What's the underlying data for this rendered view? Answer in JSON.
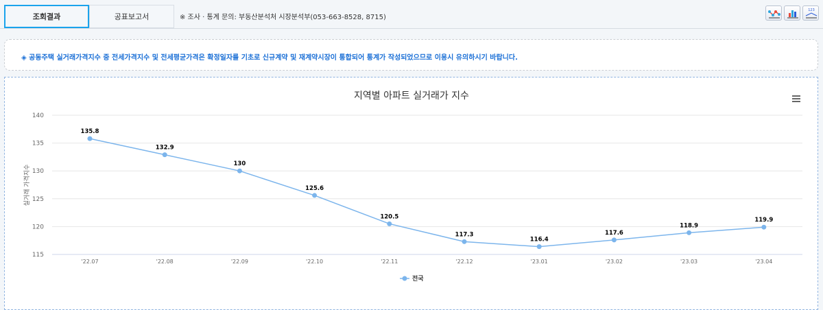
{
  "tabs": [
    {
      "label": "조회결과"
    },
    {
      "label": "공표보고서"
    }
  ],
  "contact": "※ 조사 · 통계 문의: 부동산분석처 시장분석부(053-663-8528, 8715)",
  "toolbar_icons": [
    "line-scatter-chart-icon",
    "bar-chart-icon",
    "value-label-chart-icon"
  ],
  "notice": "◈ 공동주택 실거래가격지수 중 전세가격지수 및 전세평균가격은 확정일자를 기초로 신규계약 및 재계약시장이 통합되어 통계가 작성되었으므로 이용시 유의하시기 바랍니다.",
  "colors": {
    "series": "#7cb5ec",
    "accent": "#1aa3ec"
  },
  "chart_data": {
    "type": "line",
    "title": "지역별 아파트 실거래가 지수",
    "xlabel": "",
    "ylabel": "실거래 가격지수",
    "categories": [
      "'22.07",
      "'22.08",
      "'22.09",
      "'22.10",
      "'22.11",
      "'22.12",
      "'23.01",
      "'23.02",
      "'23.03",
      "'23.04"
    ],
    "series": [
      {
        "name": "전국",
        "values": [
          135.8,
          132.9,
          130,
          125.6,
          120.5,
          117.3,
          116.4,
          117.6,
          118.9,
          119.9
        ]
      }
    ],
    "ylim": [
      115,
      140
    ],
    "yticks": [
      115,
      120,
      125,
      130,
      135,
      140
    ],
    "grid": true,
    "legend": "bottom-center"
  }
}
